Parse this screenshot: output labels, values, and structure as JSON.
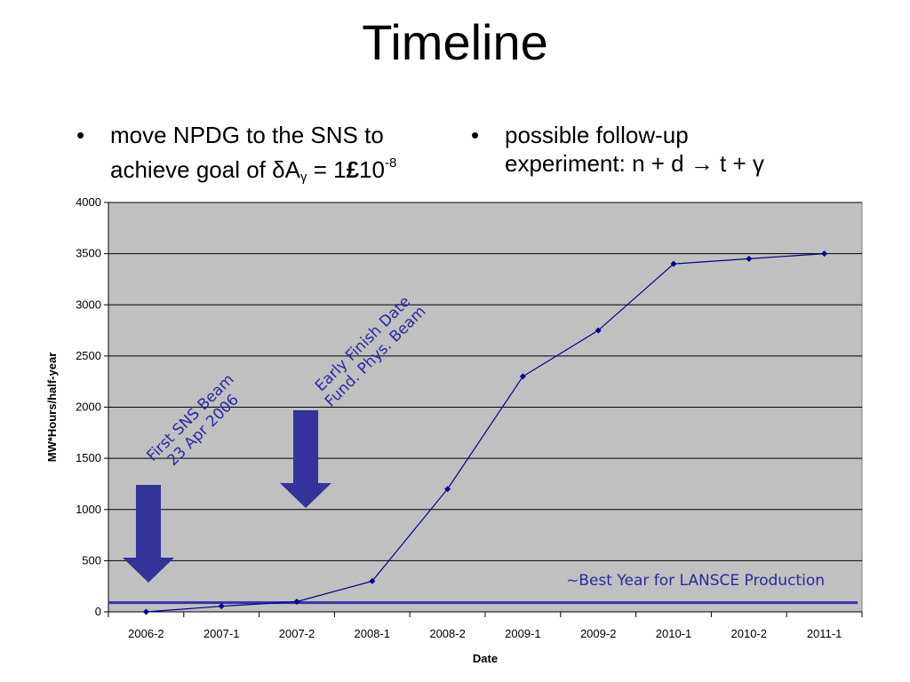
{
  "slide": {
    "title": "Timeline",
    "bullets": [
      {
        "marker": "•",
        "line1": "move NPDG to the SNS to",
        "line2_prefix": "achieve goal of ",
        "delta": "δ",
        "A": "A",
        "gamma_sub": "γ",
        "eq": " = 1",
        "bold_sym": "£",
        "ten": "10",
        "exp": "-8"
      },
      {
        "marker": "•",
        "line1": "possible follow-up",
        "line2": "experiment:  n + d → t + γ"
      }
    ]
  },
  "chart_data": {
    "type": "line",
    "categories": [
      "2006-2",
      "2007-1",
      "2007-2",
      "2008-1",
      "2008-2",
      "2009-1",
      "2009-2",
      "2010-1",
      "2010-2",
      "2011-1"
    ],
    "series": [
      {
        "values": [
          0,
          55,
          100,
          300,
          1200,
          2300,
          2750,
          3400,
          3450,
          3500
        ],
        "color": "#00008b"
      }
    ],
    "xlabel": "Date",
    "ylabel": "MW*Hours/half-year",
    "ylim": [
      0,
      4000
    ],
    "yticks": [
      0,
      500,
      1000,
      1500,
      2000,
      2500,
      3000,
      3500,
      4000
    ],
    "grid": true,
    "plot_background": "#c0c0c0",
    "reference_line": {
      "value": 90,
      "label": "~Best Year for LANSCE Production",
      "color": "#3333aa"
    },
    "annotations": [
      {
        "lines": [
          "First SNS Beam",
          "23 Apr 2006"
        ],
        "category_index": 0
      },
      {
        "lines": [
          "Early Finish Date",
          "Fund. Phys. Beam"
        ],
        "category_index": 2
      }
    ],
    "arrow_color": "#333399"
  }
}
